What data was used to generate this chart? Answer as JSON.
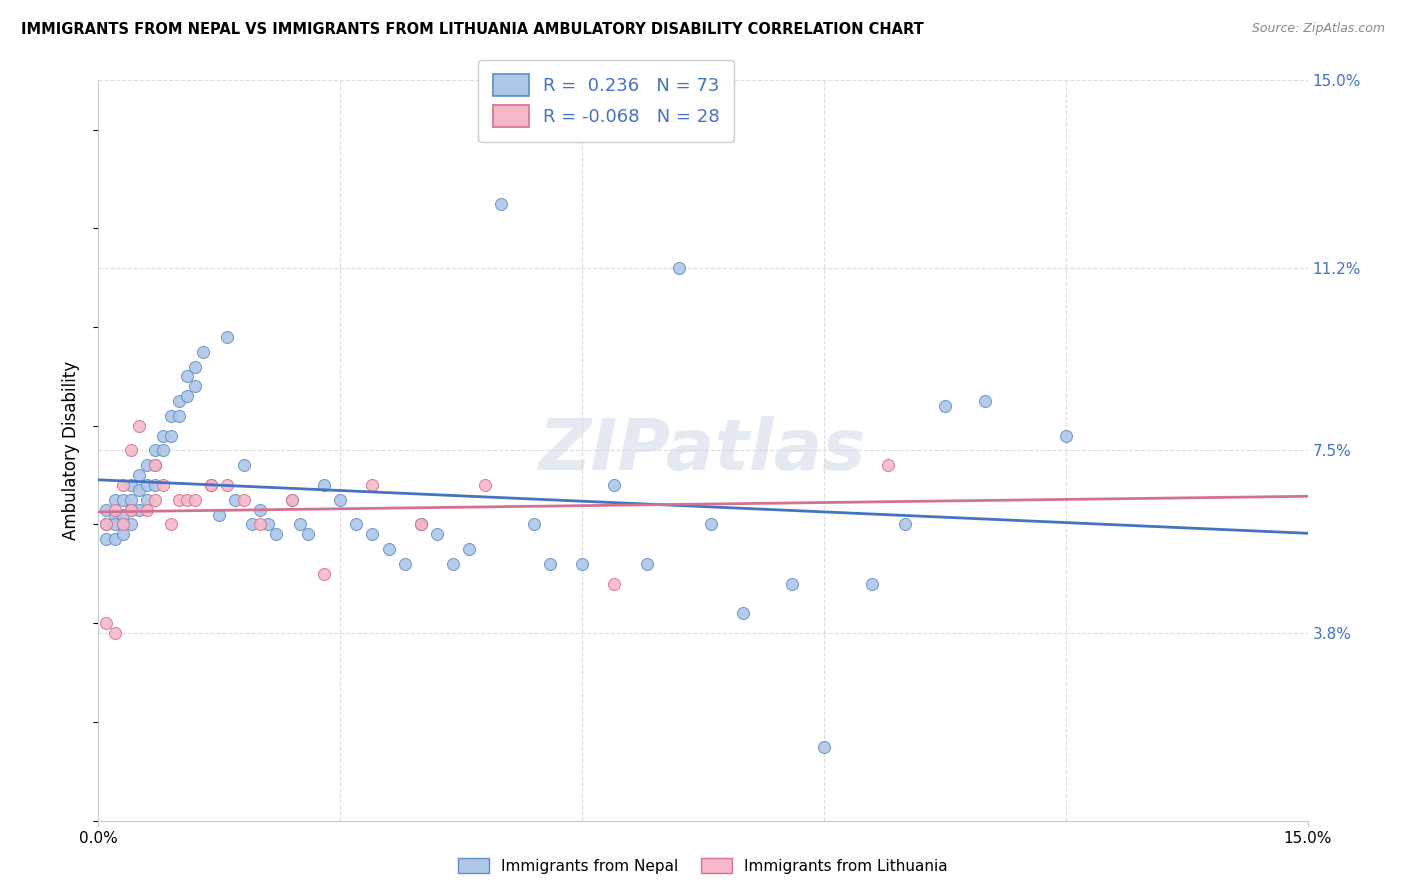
{
  "title": "IMMIGRANTS FROM NEPAL VS IMMIGRANTS FROM LITHUANIA AMBULATORY DISABILITY CORRELATION CHART",
  "source": "Source: ZipAtlas.com",
  "ylabel": "Ambulatory Disability",
  "xlim": [
    0.0,
    0.15
  ],
  "ylim": [
    0.0,
    0.15
  ],
  "y_tick_positions_right": [
    0.15,
    0.112,
    0.075,
    0.038,
    0.0
  ],
  "y_tick_labels_right": [
    "15.0%",
    "11.2%",
    "7.5%",
    "3.8%",
    ""
  ],
  "x_tick_vals": [
    0.0,
    0.03,
    0.06,
    0.09,
    0.12,
    0.15
  ],
  "nepal_R": 0.236,
  "nepal_N": 73,
  "lithuania_R": -0.068,
  "lithuania_N": 28,
  "nepal_color": "#aec6e8",
  "nepal_edge_color": "#5b8ec4",
  "nepal_line_color": "#4472c4",
  "lithuania_color": "#f4b8c8",
  "lithuania_edge_color": "#d47090",
  "lithuania_line_color": "#d47090",
  "background_color": "#ffffff",
  "grid_color": "#dddddd",
  "watermark": "ZIPatlas",
  "legend_label_nepal": "Immigrants from Nepal",
  "legend_label_lithuania": "Immigrants from Lithuania",
  "nepal_x": [
    0.001,
    0.001,
    0.001,
    0.002,
    0.002,
    0.002,
    0.002,
    0.003,
    0.003,
    0.003,
    0.003,
    0.004,
    0.004,
    0.004,
    0.004,
    0.005,
    0.005,
    0.005,
    0.006,
    0.006,
    0.006,
    0.007,
    0.007,
    0.007,
    0.008,
    0.008,
    0.009,
    0.009,
    0.01,
    0.01,
    0.011,
    0.011,
    0.012,
    0.012,
    0.013,
    0.014,
    0.015,
    0.016,
    0.017,
    0.018,
    0.019,
    0.02,
    0.021,
    0.022,
    0.024,
    0.025,
    0.026,
    0.028,
    0.03,
    0.032,
    0.034,
    0.036,
    0.038,
    0.04,
    0.042,
    0.044,
    0.046,
    0.05,
    0.054,
    0.056,
    0.06,
    0.064,
    0.068,
    0.072,
    0.076,
    0.08,
    0.086,
    0.09,
    0.096,
    0.1,
    0.105,
    0.11,
    0.12
  ],
  "nepal_y": [
    0.063,
    0.06,
    0.057,
    0.065,
    0.062,
    0.06,
    0.057,
    0.065,
    0.062,
    0.06,
    0.058,
    0.068,
    0.065,
    0.063,
    0.06,
    0.07,
    0.067,
    0.063,
    0.072,
    0.068,
    0.065,
    0.075,
    0.072,
    0.068,
    0.078,
    0.075,
    0.082,
    0.078,
    0.085,
    0.082,
    0.09,
    0.086,
    0.092,
    0.088,
    0.095,
    0.068,
    0.062,
    0.098,
    0.065,
    0.072,
    0.06,
    0.063,
    0.06,
    0.058,
    0.065,
    0.06,
    0.058,
    0.068,
    0.065,
    0.06,
    0.058,
    0.055,
    0.052,
    0.06,
    0.058,
    0.052,
    0.055,
    0.125,
    0.06,
    0.052,
    0.052,
    0.068,
    0.052,
    0.112,
    0.06,
    0.042,
    0.048,
    0.015,
    0.048,
    0.06,
    0.084,
    0.085,
    0.078
  ],
  "lithuania_x": [
    0.001,
    0.001,
    0.002,
    0.002,
    0.003,
    0.003,
    0.004,
    0.004,
    0.005,
    0.006,
    0.007,
    0.007,
    0.008,
    0.009,
    0.01,
    0.011,
    0.012,
    0.014,
    0.016,
    0.018,
    0.02,
    0.024,
    0.028,
    0.034,
    0.04,
    0.048,
    0.064,
    0.098
  ],
  "lithuania_y": [
    0.06,
    0.04,
    0.063,
    0.038,
    0.068,
    0.06,
    0.075,
    0.063,
    0.08,
    0.063,
    0.072,
    0.065,
    0.068,
    0.06,
    0.065,
    0.065,
    0.065,
    0.068,
    0.068,
    0.065,
    0.06,
    0.065,
    0.05,
    0.068,
    0.06,
    0.068,
    0.048,
    0.072
  ]
}
